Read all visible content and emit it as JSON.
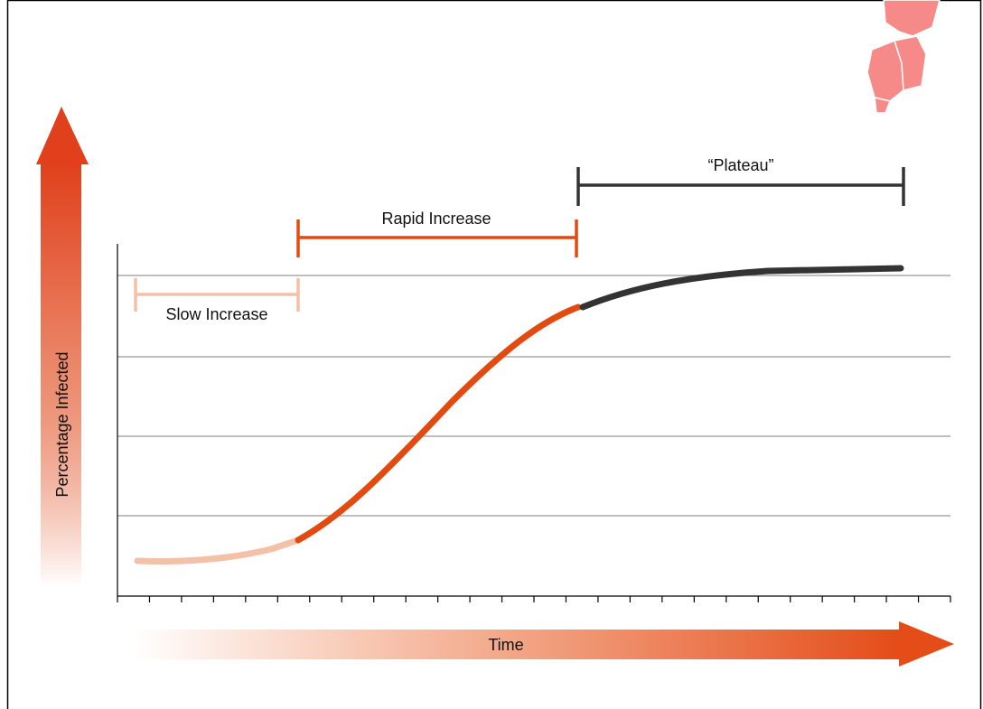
{
  "labels": {
    "y_axis": "Percentage Infected",
    "x_axis": "Time",
    "phases": [
      {
        "label": "Slow Increase"
      },
      {
        "label": "Rapid Increase"
      },
      {
        "label": "“Plateau”"
      }
    ]
  }
}
